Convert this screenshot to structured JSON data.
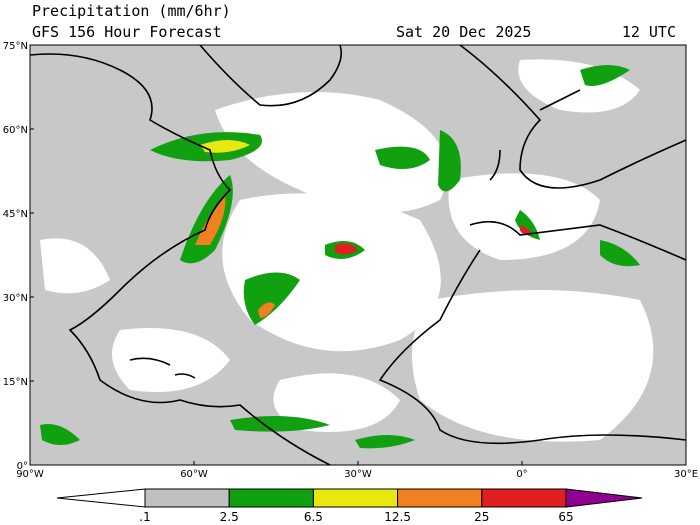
{
  "header": {
    "title": "Precipitation (mm/6hr)",
    "subtitle": "GFS 156 Hour Forecast",
    "date": "Sat 20 Dec 2025",
    "time": "12 UTC"
  },
  "map": {
    "lat_labels": [
      "75°N",
      "60°N",
      "45°N",
      "30°N",
      "15°N",
      "0°"
    ],
    "lon_labels": [
      "90°W",
      "60°W",
      "30°W",
      "0°",
      "30°E"
    ]
  },
  "colorbar": {
    "labels": [
      ".1",
      "2.5",
      "6.5",
      "12.5",
      "25",
      "65"
    ],
    "colors": [
      "#c0c0c0",
      "#10a010",
      "#e8e810",
      "#f08020",
      "#e02020",
      "#900090"
    ]
  }
}
